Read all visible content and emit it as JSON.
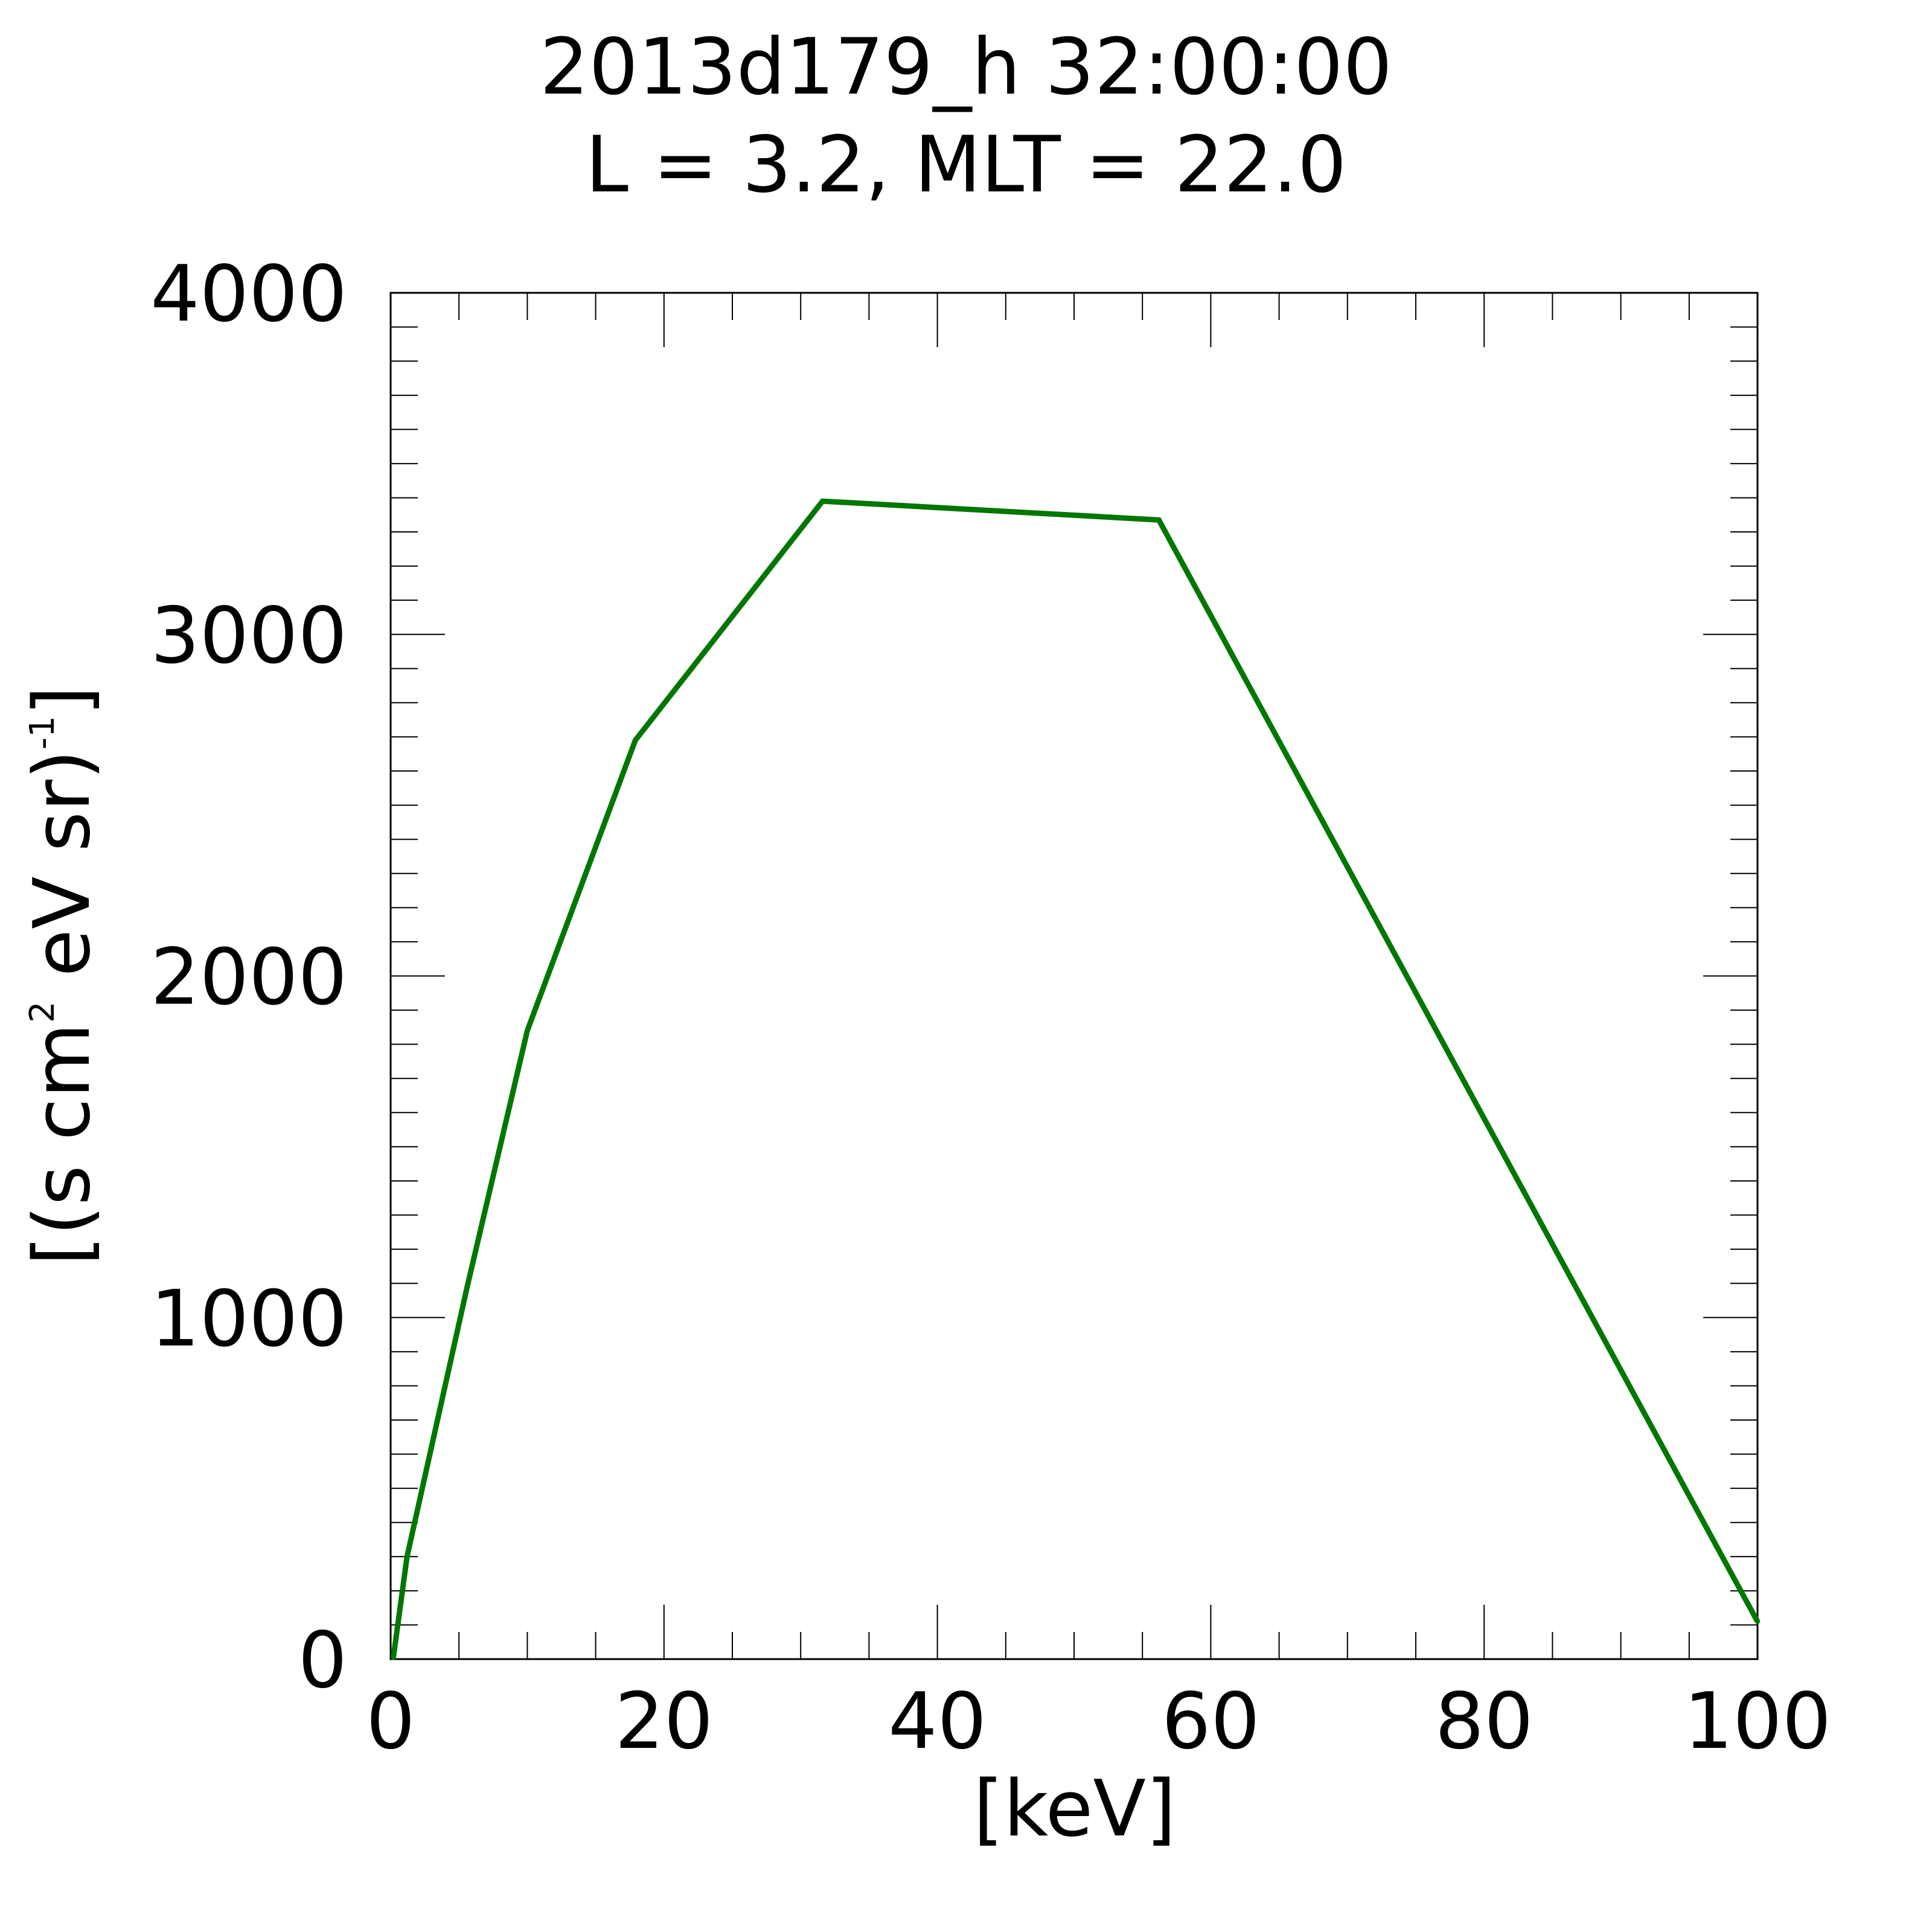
{
  "chart_data": {
    "type": "line",
    "title": "2013d179_h  32:00:00",
    "subtitle": "L = 3.2, MLT = 22.0",
    "xlabel": "[keV]",
    "ylabel": {
      "part1": "[(s cm",
      "sup1": "2",
      "part2": " eV sr)",
      "sup2": "-1",
      "part3": "]"
    },
    "xlim": [
      0,
      100
    ],
    "ylim": [
      0,
      4000
    ],
    "x_ticks": [
      0,
      20,
      40,
      60,
      80,
      100
    ],
    "y_ticks": [
      0,
      1000,
      2000,
      3000,
      4000
    ],
    "x_tick_labels": [
      "0",
      "20",
      "40",
      "60",
      "80",
      "100"
    ],
    "y_tick_labels": [
      "0",
      "1000",
      "2000",
      "3000",
      "4000"
    ],
    "grid": false,
    "series": [
      {
        "color": "#007700",
        "x": [
          0.2,
          1.2,
          5.6,
          10.0,
          17.9,
          31.6,
          56.2,
          100.0
        ],
        "y": [
          5,
          300,
          1090,
          1840,
          2690,
          3390,
          3335,
          110
        ]
      }
    ]
  }
}
